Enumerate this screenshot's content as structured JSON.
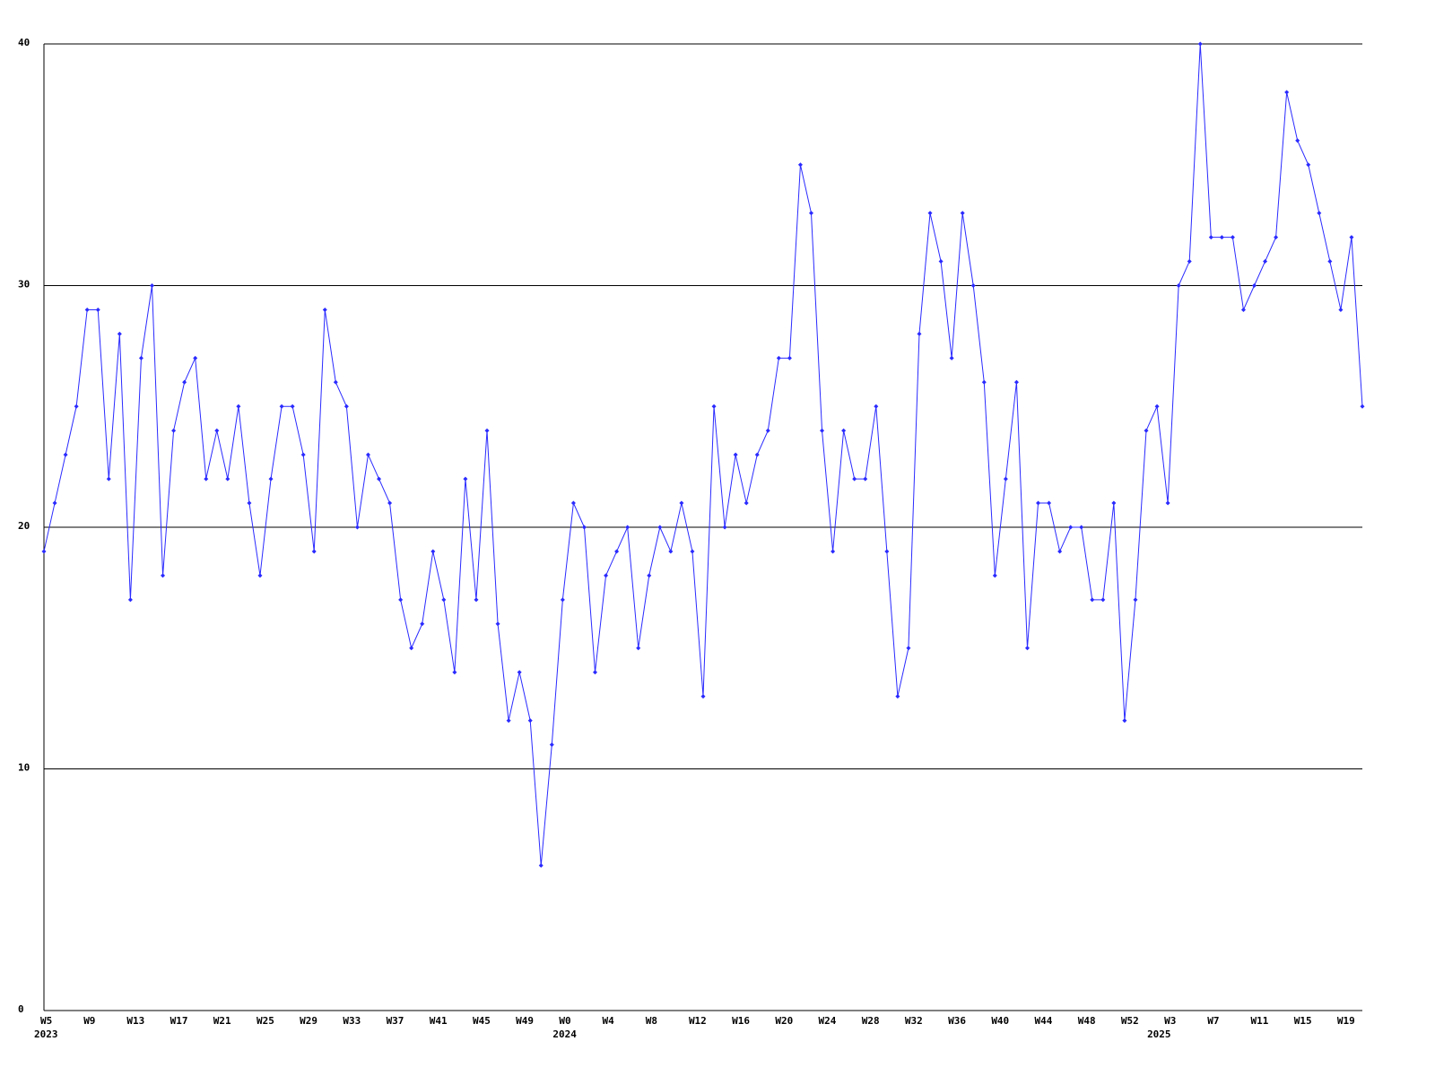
{
  "chart_data": {
    "type": "line",
    "categories": [
      "W5",
      null,
      null,
      null,
      "W9",
      null,
      null,
      null,
      "W13",
      null,
      null,
      null,
      "W17",
      null,
      null,
      null,
      "W21",
      null,
      null,
      null,
      "W25",
      null,
      null,
      null,
      "W29",
      null,
      null,
      null,
      "W33",
      null,
      null,
      null,
      "W37",
      null,
      null,
      null,
      "W41",
      null,
      null,
      null,
      "W45",
      null,
      null,
      null,
      "W49",
      null,
      null,
      null,
      "W0",
      null,
      null,
      null,
      "W4",
      null,
      null,
      null,
      "W8",
      null,
      null,
      null,
      "W12",
      null,
      null,
      null,
      "W16",
      null,
      null,
      null,
      "W20",
      null,
      null,
      null,
      "W24",
      null,
      null,
      null,
      "W28",
      null,
      null,
      null,
      "W32",
      null,
      null,
      null,
      "W36",
      null,
      null,
      null,
      "W40",
      null,
      null,
      null,
      "W44",
      null,
      null,
      null,
      "W48",
      null,
      null,
      null,
      "W52",
      null,
      null,
      null,
      "W3",
      null,
      null,
      null,
      "W7",
      null,
      null,
      null,
      "W11",
      null,
      null,
      null,
      "W15",
      null,
      null,
      null,
      "W19",
      null,
      null
    ],
    "year_labels": [
      "2023",
      null,
      null,
      null,
      null,
      null,
      null,
      null,
      null,
      null,
      null,
      null,
      null,
      null,
      null,
      null,
      null,
      null,
      null,
      null,
      null,
      null,
      null,
      null,
      null,
      null,
      null,
      null,
      null,
      null,
      null,
      null,
      null,
      null,
      null,
      null,
      null,
      null,
      null,
      null,
      null,
      null,
      null,
      null,
      null,
      null,
      null,
      null,
      "2024",
      null,
      null,
      null,
      null,
      null,
      null,
      null,
      null,
      null,
      null,
      null,
      null,
      null,
      null,
      null,
      null,
      null,
      null,
      null,
      null,
      null,
      null,
      null,
      null,
      null,
      null,
      null,
      null,
      null,
      null,
      null,
      null,
      null,
      null,
      null,
      null,
      null,
      null,
      null,
      null,
      null,
      null,
      null,
      null,
      null,
      null,
      null,
      null,
      null,
      null,
      null,
      null,
      null,
      null,
      "2025",
      null,
      null,
      null,
      null,
      null,
      null,
      null,
      null,
      null,
      null,
      null,
      null,
      null,
      null,
      null,
      null,
      null,
      null,
      null,
      null,
      null
    ],
    "series": [
      {
        "color": "#2a2aff",
        "values": [
          19,
          21,
          23,
          25,
          29,
          29,
          22,
          28,
          17,
          27,
          30,
          18,
          24,
          26,
          27,
          22,
          24,
          22,
          25,
          21,
          18,
          22,
          25,
          25,
          23,
          19,
          29,
          26,
          25,
          20,
          23,
          22,
          21,
          17,
          15,
          16,
          19,
          17,
          14,
          22,
          17,
          24,
          16,
          12,
          14,
          12,
          6,
          11,
          17,
          21,
          20,
          14,
          18,
          19,
          20,
          15,
          18,
          20,
          19,
          21,
          19,
          13,
          25,
          20,
          23,
          21,
          23,
          24,
          27,
          27,
          35,
          33,
          24,
          19,
          24,
          22,
          22,
          25,
          19,
          13,
          15,
          28,
          33,
          31,
          27,
          33,
          30,
          26,
          18,
          22,
          26,
          15,
          21,
          21,
          19,
          20,
          20,
          17,
          17,
          21,
          12,
          17,
          24,
          25,
          21,
          30,
          31,
          40,
          32,
          32,
          32,
          29,
          30,
          31,
          32,
          38,
          36,
          35,
          33,
          31,
          29,
          32,
          25
        ]
      }
    ],
    "ylim": [
      0,
      40
    ],
    "yticks": [
      0,
      10,
      20,
      30,
      40
    ],
    "grid": true
  }
}
